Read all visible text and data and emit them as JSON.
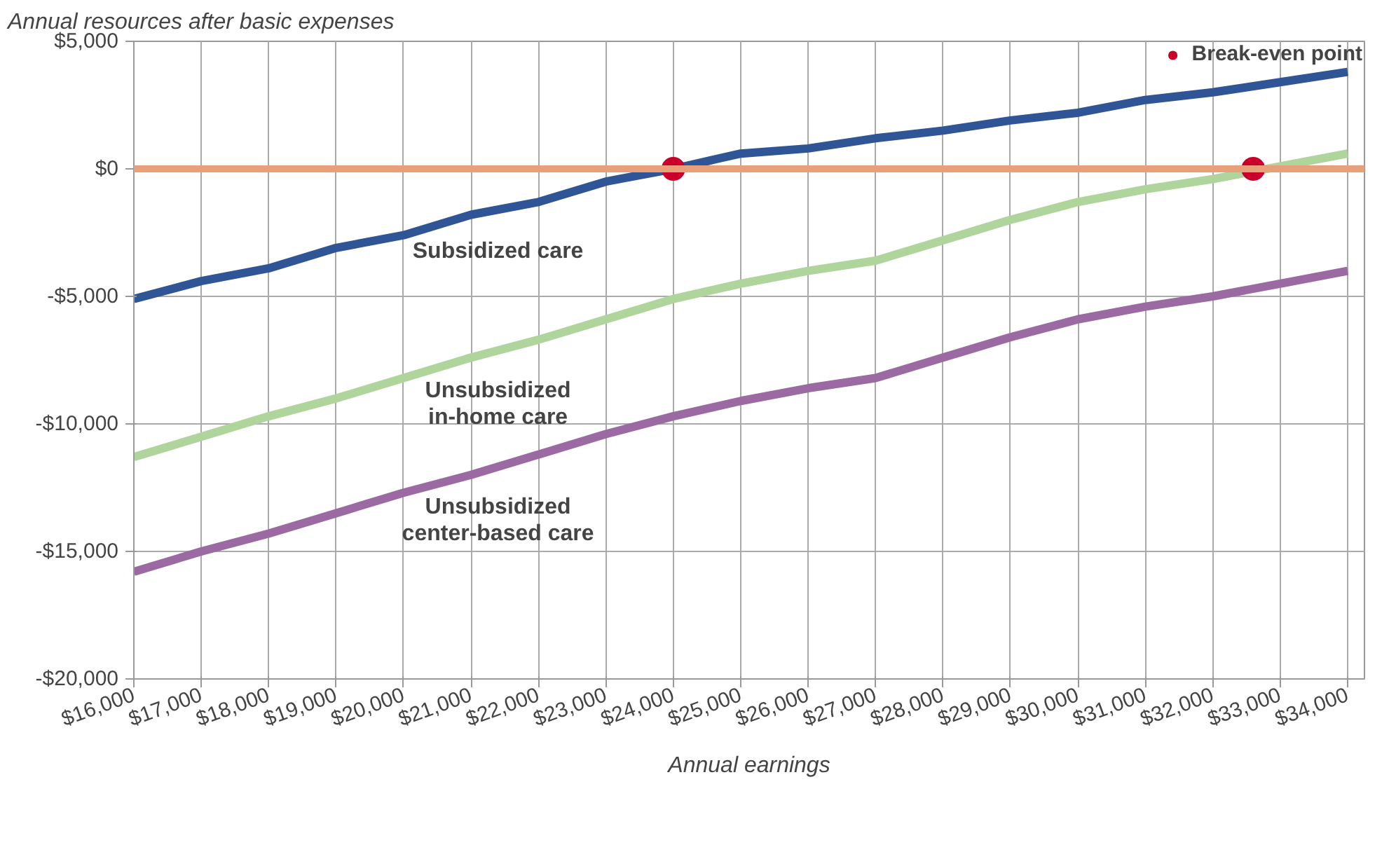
{
  "chart_data": {
    "type": "line",
    "ylabel": "Annual resources after basic expenses",
    "xlabel": "Annual earnings",
    "x": [
      16000,
      17000,
      18000,
      19000,
      20000,
      21000,
      22000,
      23000,
      24000,
      25000,
      26000,
      27000,
      28000,
      29000,
      30000,
      31000,
      32000,
      33000,
      34000
    ],
    "series": [
      {
        "color": "#2f5597",
        "values": [
          -5100,
          -4400,
          -3900,
          -3100,
          -2600,
          -1800,
          -1300,
          -500,
          0,
          600,
          800,
          1200,
          1500,
          1900,
          2200,
          2700,
          3000,
          3400,
          3800
        ]
      },
      {
        "color": "#b0d59c",
        "values": [
          -11300,
          -10500,
          -9700,
          -9000,
          -8200,
          -7400,
          -6700,
          -5900,
          -5100,
          -4500,
          -4000,
          -3600,
          -2800,
          -2000,
          -1300,
          -800,
          -400,
          100,
          600
        ]
      },
      {
        "color": "#9c6aa3",
        "values": [
          -15800,
          -15000,
          -14300,
          -13500,
          -12700,
          -12000,
          -11200,
          -10400,
          -9700,
          -9100,
          -8600,
          -8200,
          -7400,
          -6600,
          -5900,
          -5400,
          -5000,
          -4500,
          -4000
        ]
      },
      {
        "type": "scatter",
        "name": "Break-even point",
        "color": "#c8002a",
        "x": [
          24000,
          32600
        ],
        "values": [
          0,
          0
        ],
        "marker": "circle"
      }
    ],
    "annotations": [
      "Subsidized care",
      "Unsubsidized\nin-home care",
      "Unsubsidized\ncenter-based care"
    ],
    "ref_lines": [
      {
        "axis": "y",
        "value": 0,
        "color": "#e8a07a"
      }
    ],
    "xlim": [
      16000,
      34250
    ],
    "ylim": [
      -20000,
      5000
    ],
    "xticks": [
      {
        "value": 16000,
        "label": "$16,000"
      },
      {
        "value": 17000,
        "label": "$17,000"
      },
      {
        "value": 18000,
        "label": "$18,000"
      },
      {
        "value": 19000,
        "label": "$19,000"
      },
      {
        "value": 20000,
        "label": "$20,000"
      },
      {
        "value": 21000,
        "label": "$21,000"
      },
      {
        "value": 22000,
        "label": "$22,000"
      },
      {
        "value": 23000,
        "label": "$23,000"
      },
      {
        "value": 24000,
        "label": "$24,000"
      },
      {
        "value": 25000,
        "label": "$25,000"
      },
      {
        "value": 26000,
        "label": "$26,000"
      },
      {
        "value": 27000,
        "label": "$27,000"
      },
      {
        "value": 28000,
        "label": "$28,000"
      },
      {
        "value": 29000,
        "label": "$29,000"
      },
      {
        "value": 30000,
        "label": "$30,000"
      },
      {
        "value": 31000,
        "label": "$31,000"
      },
      {
        "value": 32000,
        "label": "$32,000"
      },
      {
        "value": 33000,
        "label": "$33,000"
      },
      {
        "value": 34000,
        "label": "$34,000"
      }
    ],
    "yticks": [
      {
        "value": -20000,
        "label": "-$20,000"
      },
      {
        "value": -15000,
        "label": "-$15,000"
      },
      {
        "value": -10000,
        "label": "-$10,000"
      },
      {
        "value": -5000,
        "label": "-$5,000"
      },
      {
        "value": 0,
        "label": "$0"
      },
      {
        "value": 5000,
        "label": "$5,000"
      }
    ],
    "grid": true,
    "legend": "top right",
    "marker": "none",
    "line_style": "solid"
  }
}
